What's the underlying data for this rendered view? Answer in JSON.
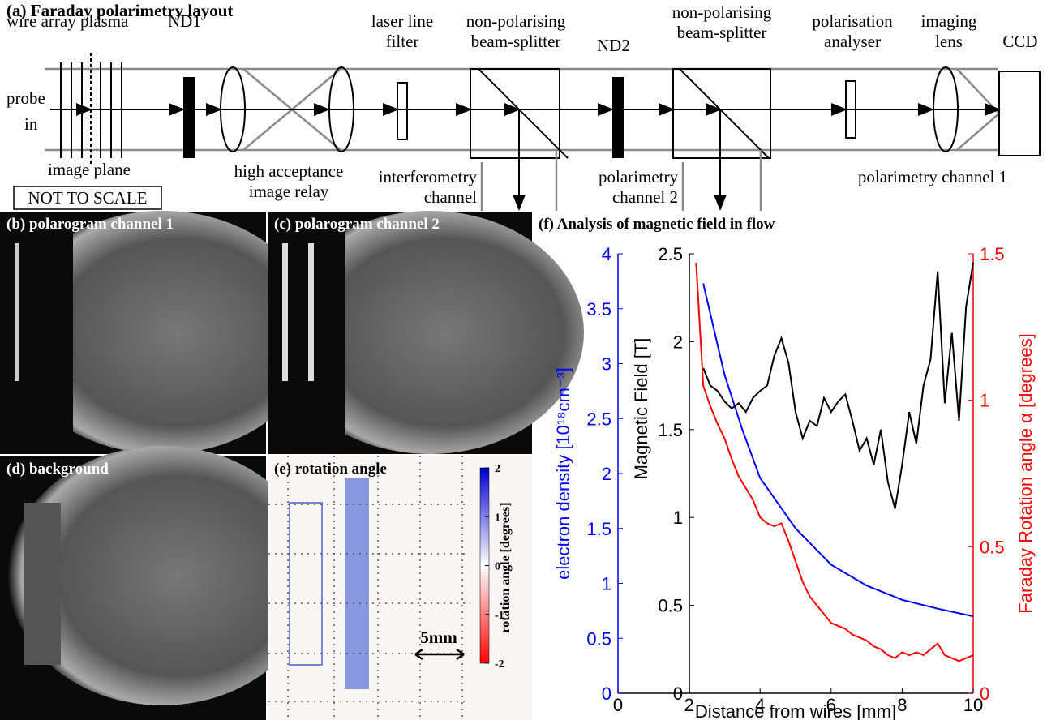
{
  "diagram": {
    "title": "(a) Faraday polarimetry layout",
    "labels": [
      "wire array plasma",
      "ND1",
      "laser line",
      "filter",
      "non-polarising",
      "beam-splitter",
      "ND2",
      "non-polarising",
      "beam-splitter",
      "polarisation",
      "analyser",
      "imaging",
      "lens",
      "CCD",
      "probe",
      "in",
      "image plane",
      "high acceptance",
      "image relay",
      "interferometry",
      "channel",
      "polarimetry",
      "channel 2",
      "polarimetry channel 1",
      "NOT TO SCALE"
    ]
  },
  "panels": [
    {
      "title": "(b) polarogram channel 1"
    },
    {
      "title": "(c) polarogram channel 2"
    },
    {
      "title": "(d) background"
    },
    {
      "title": "(e) rotation angle"
    }
  ],
  "colorbar": {
    "label": "rotation angle [degrees]",
    "lim": [
      -2,
      2
    ],
    "ticks": [
      2,
      1,
      0,
      -1,
      -2
    ]
  },
  "scale_bar": "5mm",
  "chart_data": {
    "type": "line",
    "title": "(f) Analysis of magnetic field in flow",
    "xlabel": "Distance from wires [mm]",
    "xlim": [
      0,
      10
    ],
    "xticks": [
      0,
      2,
      4,
      6,
      8,
      10
    ],
    "ylabel": "electron density [10¹⁸cm⁻³]",
    "ylim": [
      0,
      4
    ],
    "yticks": [
      0,
      0.5,
      1,
      1.5,
      2,
      2.5,
      3,
      3.5,
      4
    ],
    "ycolor": "#0000ff",
    "y2label": "Magnetic Field [T]",
    "y2lim": [
      0,
      2.5
    ],
    "y2ticks": [
      0,
      0.5,
      1,
      1.5,
      2,
      2.5
    ],
    "y2color": "#000000",
    "y3label": "Faraday Rotation angle α [degrees]",
    "y3lim": [
      0,
      1.5
    ],
    "y3ticks": [
      0,
      0.5,
      1,
      1.5
    ],
    "y3color": "#ff0000",
    "series": [
      {
        "axis": "y",
        "color": "#0000ff",
        "x": [
          2.4,
          3,
          3.5,
          4,
          5,
          6,
          7,
          8,
          9,
          10
        ],
        "values": [
          3.73,
          2.9,
          2.4,
          1.96,
          1.5,
          1.17,
          0.98,
          0.85,
          0.77,
          0.7
        ]
      },
      {
        "axis": "y3",
        "color": "#ff0000",
        "x": [
          2.2,
          2.4,
          2.6,
          2.8,
          3.0,
          3.2,
          3.4,
          3.6,
          3.8,
          4.0,
          4.2,
          4.4,
          4.6,
          4.8,
          5.0,
          5.2,
          5.4,
          5.6,
          5.8,
          6.0,
          6.2,
          6.4,
          6.6,
          6.8,
          7.0,
          7.2,
          7.4,
          7.6,
          7.8,
          8.0,
          8.2,
          8.4,
          8.6,
          8.8,
          9.0,
          9.2,
          9.4,
          9.6,
          9.8,
          10
        ],
        "values": [
          1.47,
          1.05,
          0.98,
          0.92,
          0.87,
          0.8,
          0.74,
          0.7,
          0.66,
          0.6,
          0.58,
          0.57,
          0.58,
          0.52,
          0.45,
          0.38,
          0.33,
          0.3,
          0.27,
          0.24,
          0.23,
          0.22,
          0.2,
          0.19,
          0.18,
          0.16,
          0.15,
          0.13,
          0.12,
          0.14,
          0.13,
          0.14,
          0.13,
          0.15,
          0.17,
          0.13,
          0.12,
          0.11,
          0.12,
          0.13
        ]
      },
      {
        "axis": "y2",
        "color": "#000000",
        "x": [
          2.4,
          2.6,
          2.8,
          3.0,
          3.2,
          3.4,
          3.6,
          3.8,
          4.0,
          4.2,
          4.4,
          4.6,
          4.8,
          5.0,
          5.2,
          5.4,
          5.6,
          5.8,
          6.0,
          6.2,
          6.4,
          6.6,
          6.8,
          7.0,
          7.2,
          7.4,
          7.6,
          7.8,
          8.0,
          8.2,
          8.4,
          8.6,
          8.8,
          9.0,
          9.2,
          9.4,
          9.6,
          9.8,
          10
        ],
        "values": [
          1.85,
          1.75,
          1.72,
          1.66,
          1.62,
          1.65,
          1.6,
          1.68,
          1.72,
          1.75,
          1.92,
          2.02,
          1.88,
          1.6,
          1.45,
          1.55,
          1.52,
          1.68,
          1.6,
          1.66,
          1.7,
          1.55,
          1.38,
          1.45,
          1.3,
          1.5,
          1.2,
          1.05,
          1.3,
          1.6,
          1.42,
          1.75,
          1.9,
          2.4,
          1.65,
          2.05,
          1.55,
          2.2,
          2.45
        ]
      }
    ]
  }
}
